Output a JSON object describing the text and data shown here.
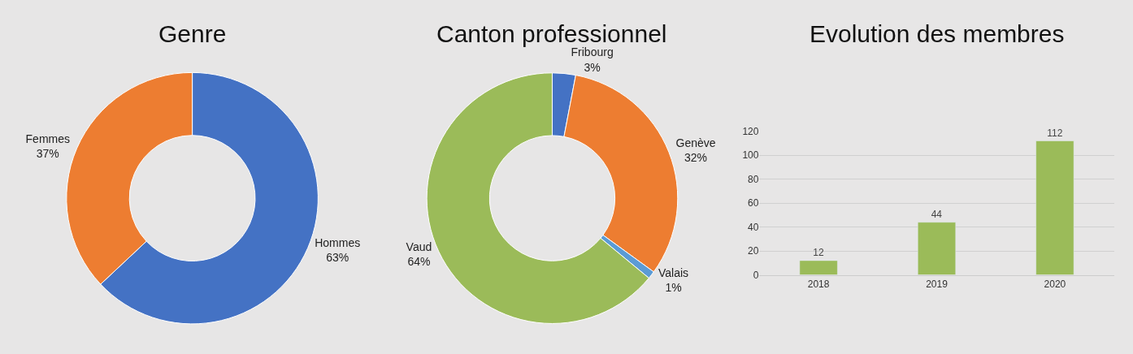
{
  "chart_data": [
    {
      "type": "donut",
      "title": "Genre",
      "categories": [
        "Hommes",
        "Femmes"
      ],
      "values": [
        63,
        37
      ],
      "colors": [
        "#4472c4",
        "#ed7d31"
      ],
      "value_labels": [
        "63%",
        "37%"
      ]
    },
    {
      "type": "donut",
      "title": "Canton professionnel",
      "categories": [
        "Fribourg",
        "Genève",
        "Valais",
        "Vaud"
      ],
      "values": [
        3,
        32,
        1,
        64
      ],
      "colors": [
        "#4472c4",
        "#ed7d31",
        "#5b9bd5",
        "#9bbb59"
      ],
      "value_labels": [
        "3%",
        "32%",
        "1%",
        "64%"
      ]
    },
    {
      "type": "bar",
      "title": "Evolution des membres",
      "categories": [
        "2018",
        "2019",
        "2020"
      ],
      "values": [
        12,
        44,
        112
      ],
      "color": "#9bbb59",
      "ylim": [
        0,
        120
      ],
      "yticks": [
        0,
        20,
        40,
        60,
        80,
        100,
        120
      ],
      "grid": "y",
      "data_labels": true
    }
  ]
}
